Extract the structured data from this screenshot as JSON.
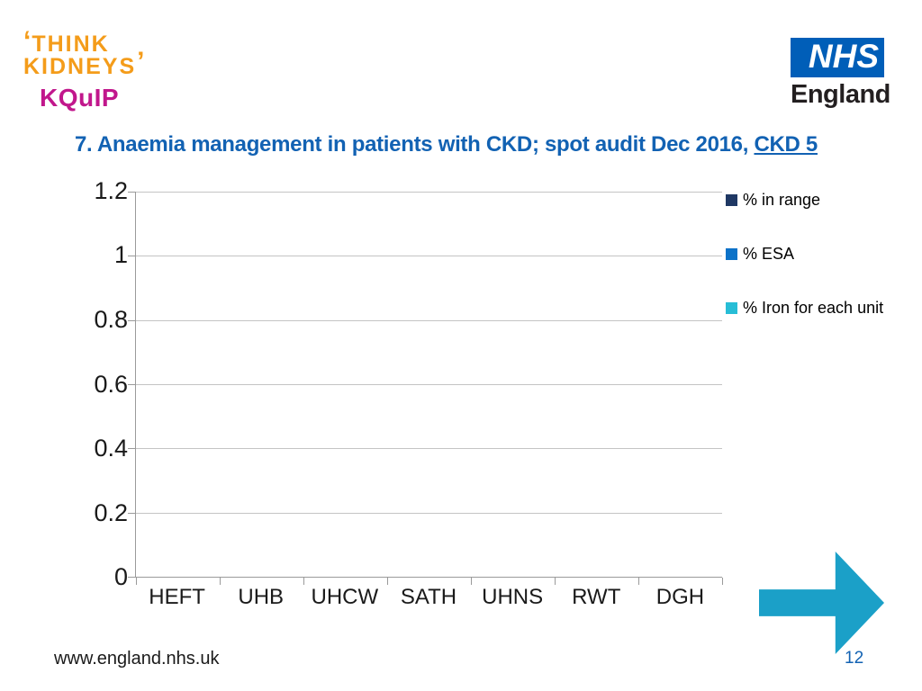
{
  "branding": {
    "think_kidneys": {
      "open_quote": "‘",
      "line1": "THINK",
      "line2": "KIDNEYS",
      "close_quote": "’",
      "sub": "KQuIP",
      "orange": "#F49C1A",
      "magenta": "#C1178C"
    },
    "nhs": {
      "block": "NHS",
      "org": "England",
      "blue": "#005EB8"
    }
  },
  "title": {
    "text": "7. Anaemia management in patients with CKD; spot audit Dec 2016, ",
    "underlined": "CKD 5",
    "color": "#1262B3"
  },
  "chart_data": {
    "type": "bar",
    "title": "",
    "xlabel": "",
    "ylabel": "",
    "categories": [
      "HEFT",
      "UHB",
      "UHCW",
      "SATH",
      "UHNS",
      "RWT",
      "DGH"
    ],
    "series": [
      {
        "name": "% in range",
        "color": "#1F3864",
        "values": [
          0,
          0,
          0,
          0,
          0,
          0,
          0
        ]
      },
      {
        "name": "% ESA",
        "color": "#0C72C8",
        "values": [
          0,
          0,
          0,
          0,
          0,
          0,
          0
        ]
      },
      {
        "name": "% Iron for each unit",
        "color": "#27BDD6",
        "values": [
          0,
          0,
          0,
          0,
          0,
          0,
          0
        ]
      }
    ],
    "ylim": [
      0,
      1.2
    ],
    "yticks": [
      0,
      0.2,
      0.4,
      0.6,
      0.8,
      1,
      1.2
    ],
    "ytick_labels": [
      "0",
      "0.2",
      "0.4",
      "0.6",
      "0.8",
      "1",
      "1.2"
    ],
    "grid": true,
    "legend_position": "right"
  },
  "footer": {
    "url": "www.england.nhs.uk",
    "page_number": "12"
  },
  "nav_arrow": {
    "direction": "right",
    "color": "#1BA0C8"
  }
}
